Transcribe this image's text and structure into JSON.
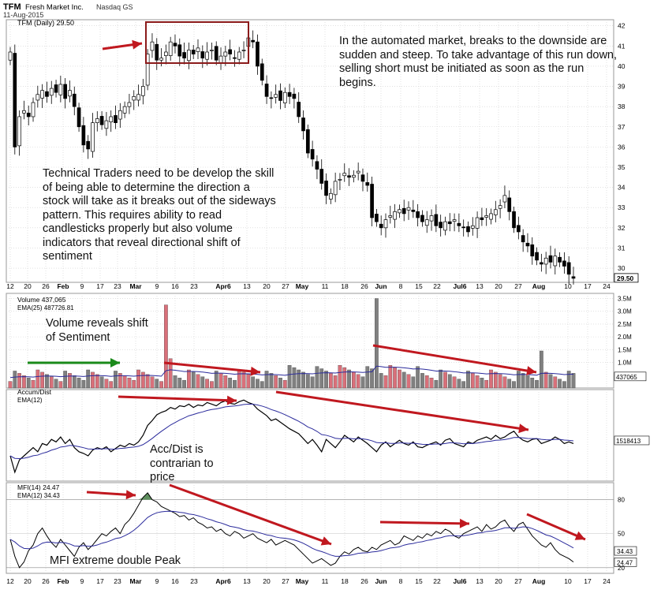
{
  "header": {
    "symbol": "TFM",
    "company": "Fresh Market Inc.",
    "exchange": "Nasdaq GS",
    "date": "11-Aug-2015"
  },
  "annotations": {
    "top_right": "In the automated market, breaks to the downside are sudden and steep.  To take advantage of this run down, selling short must be initiated as soon as the run begins.",
    "technical": "Technical Traders need to be develop the skill of being able to determine the direction a stock will  take as it breaks out of the sideways pattern. This requires ability to read candlesticks properly but also volume indicators that reveal directional shift of sentiment",
    "volume": "Volume reveals shift of Sentiment",
    "accdist": "Acc/Dist is contrarian to price",
    "mfi": "MFI extreme double Peak"
  },
  "colors": {
    "up": "#ffffff",
    "down": "#000000",
    "vol_up": "#d9707a",
    "vol_down": "#808080",
    "ema": "#2b2b9c",
    "arrow_red": "#c0181f",
    "arrow_green": "#1a8a1a",
    "box": "#8b1a1a",
    "grid": "#cfcfcf",
    "mfi_fill": "#5f8f5f"
  },
  "chart_data": [
    {
      "type": "candlestick",
      "title": "TFM (Daily) 29.50",
      "legend": "TFM (Daily) 29.50",
      "last_value_label": "29.50",
      "ylim": [
        29.3,
        42.3
      ],
      "yticks": [
        30,
        31,
        32,
        33,
        34,
        35,
        36,
        37,
        38,
        39,
        40,
        41,
        42
      ],
      "x_tick_labels": [
        "12",
        "20",
        "26",
        "Feb",
        "9",
        "17",
        "23",
        "Mar",
        "9",
        "16",
        "23",
        "Apr6",
        "13",
        "20",
        "27",
        "May",
        "11",
        "18",
        "26",
        "Jun",
        "8",
        "15",
        "22",
        "Jul6",
        "13",
        "20",
        "27",
        "Aug",
        "10",
        "17",
        "24"
      ],
      "close": [
        40.7,
        36.0,
        37.5,
        37.8,
        37.5,
        38.2,
        38.6,
        38.8,
        38.5,
        38.9,
        38.7,
        39.1,
        38.4,
        38.8,
        38.0,
        37.0,
        36.1,
        35.9,
        37.2,
        37.4,
        37.1,
        37.3,
        37.5,
        37.2,
        37.8,
        38.0,
        38.2,
        38.5,
        38.6,
        39.0,
        40.6,
        41.2,
        40.3,
        40.4,
        40.7,
        41.2,
        41.0,
        40.5,
        40.4,
        40.8,
        40.6,
        40.9,
        40.4,
        40.7,
        40.8,
        40.3,
        40.5,
        40.7,
        40.6,
        40.4,
        40.7,
        40.8,
        41.4,
        41.2,
        40.0,
        39.3,
        38.5,
        38.4,
        38.6,
        38.3,
        38.7,
        38.5,
        38.4,
        37.5,
        36.8,
        35.7,
        35.4,
        34.9,
        34.2,
        33.6,
        33.7,
        34.3,
        34.4,
        34.7,
        34.5,
        34.6,
        34.8,
        34.3,
        34.1,
        32.5,
        32.3,
        32.0,
        32.4,
        32.6,
        32.8,
        32.9,
        32.7,
        33.0,
        32.8,
        32.5,
        32.3,
        32.4,
        32.6,
        32.1,
        32.0,
        32.3,
        32.2,
        32.4,
        32.1,
        32.0,
        31.8,
        32.1,
        32.5,
        32.4,
        32.6,
        32.7,
        32.9,
        33.1,
        33.6,
        32.8,
        32.0,
        31.8,
        31.3,
        31.1,
        30.6,
        30.4,
        30.2,
        30.5,
        30.3,
        30.6,
        30.3,
        30.1,
        29.7,
        29.5
      ],
      "open_offset_note": ""
    },
    {
      "type": "bar",
      "title": "Volume 437,065",
      "legend": [
        "Volume 437,065",
        "EMA(25) 487726.81"
      ],
      "last_value_label": "437065",
      "ylim": [
        0,
        3700000
      ],
      "ytick_labels": [
        "1.0M",
        "1.5M",
        "2.0M",
        "2.5M",
        "3.0M",
        "3.5M"
      ],
      "yticks": [
        1000000,
        1500000,
        2000000,
        2500000,
        3000000,
        3500000
      ]
    },
    {
      "type": "line",
      "title": "Accum/Dist",
      "legend": [
        "Accum/Dist",
        "EMA(12)"
      ],
      "last_value_label": "1518413"
    },
    {
      "type": "line",
      "title": "MFI(14) 24.47",
      "legend": [
        "MFI(14) 24.47",
        "EMA(12) 34.43"
      ],
      "ylim": [
        15,
        95
      ],
      "yticks": [
        20,
        50,
        80
      ],
      "last_value_labels": [
        "34.43",
        "24.47"
      ]
    }
  ]
}
